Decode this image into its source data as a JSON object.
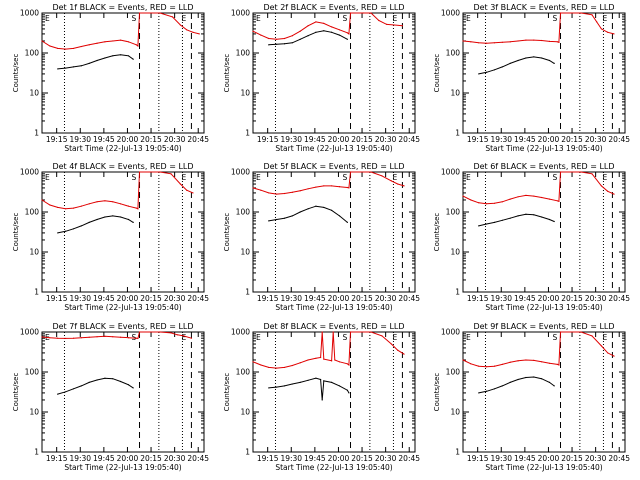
{
  "legend_suffix": "BLACK = Events, RED = LLD",
  "xlabel": "Start Time (22-Jul-13 19:05:40)",
  "ylabel": "Counts/sec",
  "x_tick_labels": [
    "19:15",
    "19:30",
    "19:45",
    "20:00",
    "20:15",
    "20:30",
    "20:45"
  ],
  "y_tick_labels": [
    "1",
    "10",
    "100",
    "1000"
  ],
  "colors": {
    "events": "#000000",
    "lld": "#e00000",
    "axes": "#000000"
  },
  "chart_data": [
    {
      "type": "line",
      "title": "Det 1f BLACK = Events, RED = LLD",
      "xlabel": "Start Time (22-Jul-13 19:05:40)",
      "ylabel": "Counts/sec",
      "x_unit": "minutes after 19:05:40",
      "xlim": [
        0,
        103
      ],
      "ylim": [
        1,
        1000
      ],
      "yscale": "log",
      "markers": [
        "E",
        "S",
        "E"
      ],
      "dotted_lines_min": [
        14.3,
        74.3,
        89.3
      ],
      "dashed_lines_min": [
        62,
        95
      ],
      "series": [
        {
          "name": "Events",
          "x": [
            10,
            15,
            20,
            25,
            30,
            35,
            40,
            45,
            50,
            55,
            58
          ],
          "y": [
            40,
            42,
            45,
            48,
            55,
            65,
            75,
            85,
            90,
            85,
            70
          ]
        },
        {
          "name": "LLD",
          "x": [
            0,
            5,
            10,
            15,
            20,
            25,
            30,
            35,
            40,
            45,
            50,
            55,
            60,
            61,
            62,
            75,
            83,
            88,
            92,
            96,
            100
          ],
          "y": [
            200,
            150,
            130,
            125,
            130,
            145,
            160,
            175,
            190,
            200,
            210,
            190,
            160,
            150,
            1000,
            1000,
            800,
            500,
            380,
            330,
            300
          ]
        }
      ]
    },
    {
      "type": "line",
      "title": "Det 2f BLACK = Events, RED = LLD",
      "xlabel": "Start Time (22-Jul-13 19:05:40)",
      "ylabel": "Counts/sec",
      "x_unit": "minutes after 19:05:40",
      "xlim": [
        0,
        103
      ],
      "ylim": [
        1,
        1000
      ],
      "yscale": "log",
      "markers": [
        "E",
        "S",
        "E"
      ],
      "dotted_lines_min": [
        14.3,
        74.3,
        89.3
      ],
      "dashed_lines_min": [
        62,
        95
      ],
      "series": [
        {
          "name": "Events",
          "x": [
            10,
            15,
            20,
            25,
            30,
            35,
            40,
            45,
            50,
            55,
            60
          ],
          "y": [
            160,
            165,
            170,
            180,
            220,
            270,
            330,
            360,
            330,
            280,
            220
          ]
        },
        {
          "name": "LLD",
          "x": [
            0,
            5,
            10,
            15,
            20,
            25,
            30,
            35,
            40,
            45,
            50,
            55,
            60,
            61,
            62,
            70,
            75,
            80,
            85,
            90,
            95
          ],
          "y": [
            350,
            280,
            230,
            220,
            230,
            270,
            350,
            480,
            600,
            550,
            450,
            380,
            320,
            300,
            1000,
            1000,
            1000,
            650,
            520,
            500,
            480
          ]
        }
      ]
    },
    {
      "type": "line",
      "title": "Det 3f BLACK = Events, RED = LLD",
      "xlabel": "Start Time (22-Jul-13 19:05:40)",
      "ylabel": "Counts/sec",
      "x_unit": "minutes after 19:05:40",
      "xlim": [
        0,
        103
      ],
      "ylim": [
        1,
        1000
      ],
      "yscale": "log",
      "markers": [
        "E",
        "S",
        "E"
      ],
      "dotted_lines_min": [
        14.3,
        74.3,
        89.3
      ],
      "dashed_lines_min": [
        62,
        95
      ],
      "series": [
        {
          "name": "Events",
          "x": [
            10,
            15,
            20,
            25,
            30,
            35,
            40,
            45,
            50,
            55,
            58
          ],
          "y": [
            30,
            33,
            38,
            45,
            55,
            65,
            75,
            80,
            75,
            65,
            55
          ]
        },
        {
          "name": "LLD",
          "x": [
            0,
            5,
            10,
            15,
            20,
            25,
            30,
            35,
            40,
            45,
            50,
            55,
            60,
            61,
            62,
            75,
            82,
            85,
            88,
            92,
            96
          ],
          "y": [
            200,
            190,
            180,
            175,
            180,
            185,
            190,
            200,
            210,
            210,
            205,
            195,
            190,
            185,
            1000,
            1000,
            900,
            600,
            400,
            330,
            300
          ]
        }
      ]
    },
    {
      "type": "line",
      "title": "Det 4f BLACK = Events, RED = LLD",
      "xlabel": "Start Time (22-Jul-13 19:05:40)",
      "ylabel": "Counts/sec",
      "x_unit": "minutes after 19:05:40",
      "xlim": [
        0,
        103
      ],
      "ylim": [
        1,
        1000
      ],
      "yscale": "log",
      "markers": [
        "E",
        "S",
        "E"
      ],
      "dotted_lines_min": [
        14.3,
        74.3,
        89.3
      ],
      "dashed_lines_min": [
        62,
        95
      ],
      "series": [
        {
          "name": "Events",
          "x": [
            10,
            15,
            20,
            25,
            30,
            35,
            40,
            45,
            50,
            55,
            58
          ],
          "y": [
            30,
            33,
            38,
            45,
            55,
            65,
            75,
            80,
            75,
            65,
            55
          ]
        },
        {
          "name": "LLD",
          "x": [
            0,
            5,
            10,
            15,
            20,
            25,
            30,
            35,
            40,
            45,
            50,
            55,
            60,
            61,
            62,
            75,
            82,
            88,
            92,
            96
          ],
          "y": [
            200,
            150,
            130,
            120,
            125,
            140,
            160,
            180,
            190,
            180,
            160,
            140,
            125,
            120,
            1000,
            1000,
            900,
            500,
            350,
            300
          ]
        }
      ]
    },
    {
      "type": "line",
      "title": "Det 5f BLACK = Events, RED = LLD",
      "xlabel": "Start Time (22-Jul-13 19:05:40)",
      "ylabel": "Counts/sec",
      "x_unit": "minutes after 19:05:40",
      "xlim": [
        0,
        103
      ],
      "ylim": [
        1,
        1000
      ],
      "yscale": "log",
      "markers": [
        "E",
        "S",
        "E"
      ],
      "dotted_lines_min": [
        14.3,
        74.3,
        89.3
      ],
      "dashed_lines_min": [
        62,
        95
      ],
      "series": [
        {
          "name": "Events",
          "x": [
            10,
            15,
            20,
            25,
            30,
            35,
            40,
            45,
            50,
            55,
            60
          ],
          "y": [
            60,
            65,
            70,
            80,
            100,
            120,
            140,
            130,
            110,
            80,
            55
          ]
        },
        {
          "name": "LLD",
          "x": [
            0,
            5,
            10,
            15,
            20,
            25,
            30,
            35,
            40,
            45,
            50,
            55,
            60,
            61,
            62,
            75,
            82,
            88,
            92,
            96
          ],
          "y": [
            400,
            350,
            300,
            280,
            290,
            310,
            340,
            380,
            420,
            450,
            450,
            430,
            410,
            400,
            1000,
            1000,
            800,
            600,
            500,
            450
          ]
        }
      ]
    },
    {
      "type": "line",
      "title": "Det 6f BLACK = Events, RED = LLD",
      "xlabel": "Start Time (22-Jul-13 19:05:40)",
      "ylabel": "Counts/sec",
      "x_unit": "minutes after 19:05:40",
      "xlim": [
        0,
        103
      ],
      "ylim": [
        1,
        1000
      ],
      "yscale": "log",
      "markers": [
        "E",
        "S",
        "E"
      ],
      "dotted_lines_min": [
        14.3,
        74.3,
        89.3
      ],
      "dashed_lines_min": [
        62,
        95
      ],
      "series": [
        {
          "name": "Events",
          "x": [
            10,
            15,
            20,
            25,
            30,
            35,
            40,
            45,
            50,
            55,
            58
          ],
          "y": [
            45,
            50,
            55,
            62,
            70,
            80,
            88,
            85,
            75,
            65,
            58
          ]
        },
        {
          "name": "LLD",
          "x": [
            0,
            5,
            10,
            15,
            20,
            25,
            30,
            35,
            40,
            45,
            50,
            55,
            60,
            61,
            62,
            75,
            82,
            88,
            92,
            96
          ],
          "y": [
            250,
            200,
            170,
            160,
            165,
            180,
            210,
            240,
            260,
            250,
            230,
            210,
            190,
            185,
            1000,
            1000,
            900,
            450,
            330,
            280
          ]
        }
      ]
    },
    {
      "type": "line",
      "title": "Det 7f BLACK = Events, RED = LLD",
      "xlabel": "Start Time (22-Jul-13 19:05:40)",
      "ylabel": "Counts/sec",
      "x_unit": "minutes after 19:05:40",
      "xlim": [
        0,
        103
      ],
      "ylim": [
        1,
        1000
      ],
      "yscale": "log",
      "markers": [
        "E",
        "S",
        "E"
      ],
      "dotted_lines_min": [
        14.3,
        74.3,
        89.3
      ],
      "dashed_lines_min": [
        62,
        95
      ],
      "series": [
        {
          "name": "Events",
          "x": [
            10,
            15,
            20,
            25,
            30,
            35,
            40,
            45,
            50,
            55,
            58
          ],
          "y": [
            28,
            32,
            38,
            45,
            55,
            63,
            70,
            68,
            58,
            48,
            40
          ]
        },
        {
          "name": "LLD",
          "x": [
            0,
            5,
            10,
            15,
            20,
            25,
            30,
            35,
            40,
            45,
            50,
            55,
            60,
            61,
            62,
            75,
            82,
            86,
            90,
            95
          ],
          "y": [
            750,
            720,
            700,
            690,
            700,
            720,
            740,
            760,
            780,
            760,
            740,
            720,
            700,
            690,
            1000,
            1000,
            950,
            850,
            800,
            700
          ]
        }
      ]
    },
    {
      "type": "line",
      "title": "Det 8f BLACK = Events, RED = LLD",
      "xlabel": "Start Time (22-Jul-13 19:05:40)",
      "ylabel": "Counts/sec",
      "x_unit": "minutes after 19:05:40",
      "xlim": [
        0,
        103
      ],
      "ylim": [
        1,
        1000
      ],
      "yscale": "log",
      "markers": [
        "E",
        "S",
        "E"
      ],
      "dotted_lines_min": [
        14.3,
        74.3,
        89.3
      ],
      "dashed_lines_min": [
        62,
        95
      ],
      "series": [
        {
          "name": "Events",
          "x": [
            10,
            15,
            20,
            25,
            30,
            35,
            40,
            43,
            44,
            45,
            50,
            55,
            60,
            61
          ],
          "y": [
            40,
            42,
            45,
            50,
            55,
            62,
            70,
            65,
            20,
            60,
            55,
            45,
            35,
            30
          ]
        },
        {
          "name": "LLD",
          "x": [
            0,
            5,
            10,
            15,
            20,
            25,
            30,
            35,
            40,
            43,
            44,
            45,
            50,
            51,
            52,
            55,
            60,
            61,
            62,
            75,
            82,
            88,
            92,
            96
          ],
          "y": [
            180,
            150,
            130,
            125,
            130,
            145,
            170,
            200,
            220,
            230,
            1000,
            210,
            190,
            1000,
            200,
            180,
            160,
            150,
            1000,
            1000,
            800,
            500,
            350,
            280
          ]
        }
      ]
    },
    {
      "type": "line",
      "title": "Det 9f BLACK = Events, RED = LLD",
      "xlabel": "Start Time (22-Jul-13 19:05:40)",
      "ylabel": "Counts/sec",
      "x_unit": "minutes after 19:05:40",
      "xlim": [
        0,
        103
      ],
      "ylim": [
        1,
        1000
      ],
      "yscale": "log",
      "markers": [
        "E",
        "S",
        "E"
      ],
      "dotted_lines_min": [
        14.3,
        74.3,
        89.3
      ],
      "dashed_lines_min": [
        62,
        95
      ],
      "series": [
        {
          "name": "Events",
          "x": [
            10,
            15,
            20,
            25,
            30,
            35,
            40,
            45,
            50,
            55,
            58
          ],
          "y": [
            30,
            33,
            38,
            45,
            55,
            65,
            73,
            75,
            68,
            55,
            45
          ]
        },
        {
          "name": "LLD",
          "x": [
            0,
            5,
            10,
            15,
            20,
            25,
            30,
            35,
            40,
            45,
            50,
            55,
            60,
            61,
            62,
            75,
            82,
            88,
            92,
            96
          ],
          "y": [
            200,
            160,
            140,
            135,
            140,
            155,
            175,
            190,
            200,
            195,
            180,
            165,
            155,
            150,
            1000,
            1000,
            800,
            450,
            300,
            250
          ]
        }
      ]
    }
  ]
}
